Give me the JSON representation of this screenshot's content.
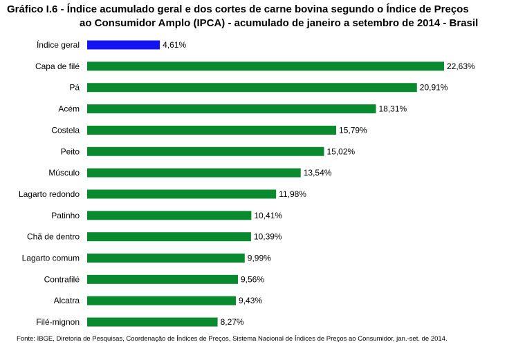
{
  "title_line1": "Gráfico I.6 - Índice acumulado geral e dos cortes de carne bovina segundo o Índice de Preços",
  "title_line2": "ao Consumidor Amplo (IPCA) - acumulado de janeiro a setembro de 2014 - Brasil",
  "source": "Fonte: IBGE, Diretoria de Pesquisas, Coordenação de Índices de Preços, Sistema Nacional de Índices de Preços ao Consumidor, jan.-set. de 2014.",
  "chart_data": {
    "type": "bar",
    "orientation": "horizontal",
    "title": "Índice acumulado geral e dos cortes de carne bovina segundo o IPCA - acumulado de janeiro a setembro de 2014 - Brasil",
    "xlabel": "",
    "ylabel": "",
    "xlim": [
      0,
      22.63
    ],
    "grid": false,
    "categories": [
      "Índice geral",
      "Capa de filé",
      "Pá",
      "Acém",
      "Costela",
      "Peito",
      "Músculo",
      "Lagarto redondo",
      "Patinho",
      "Chã de dentro",
      "Lagarto comum",
      "Contrafilé",
      "Alcatra",
      "Filé-mignon"
    ],
    "values": [
      4.61,
      22.63,
      20.91,
      18.31,
      15.79,
      15.02,
      13.54,
      11.98,
      10.41,
      10.39,
      9.99,
      9.56,
      9.43,
      8.27
    ],
    "value_labels": [
      "4,61%",
      "22,63%",
      "20,91%",
      "18,31%",
      "15,79%",
      "15,02%",
      "13,54%",
      "11,98%",
      "10,41%",
      "10,39%",
      "9,99%",
      "9,56%",
      "9,43%",
      "8,27%"
    ],
    "colors": [
      "#1414f0",
      "#0a8a2e",
      "#0a8a2e",
      "#0a8a2e",
      "#0a8a2e",
      "#0a8a2e",
      "#0a8a2e",
      "#0a8a2e",
      "#0a8a2e",
      "#0a8a2e",
      "#0a8a2e",
      "#0a8a2e",
      "#0a8a2e",
      "#0a8a2e"
    ]
  }
}
